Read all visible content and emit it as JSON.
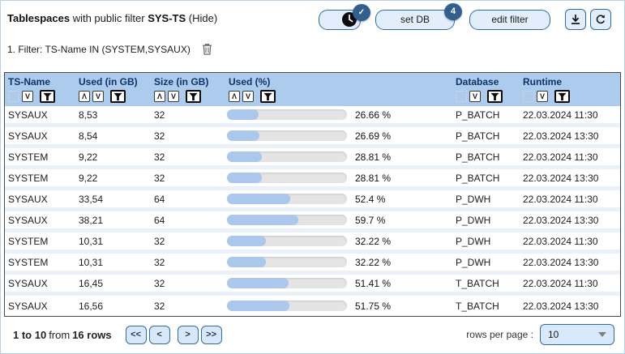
{
  "header": {
    "title_bold": "Tablespaces",
    "title_middle": " with public filter ",
    "title_filter_name": "SYS-TS",
    "hide_label": " (Hide)",
    "toggle_badge_check": "✓",
    "set_db_label": "set DB",
    "set_db_badge": "4",
    "edit_filter_label": "edit filter"
  },
  "icons": {
    "clock": "clock-icon",
    "check": "check-icon",
    "download": "download-icon",
    "refresh": "refresh-icon",
    "trash": "trash-icon",
    "funnel": "filter-funnel-icon",
    "sort_up_glyph": "Λ",
    "sort_down_glyph": "V",
    "dropdown_arrow": "triangle-down-icon"
  },
  "filter_line": {
    "text": "1. Filter: TS-Name IN (SYSTEM,SYSAUX)"
  },
  "table": {
    "columns": [
      {
        "label": "TS-Name",
        "up_enabled": false
      },
      {
        "label": "Used (in GB)",
        "up_enabled": true
      },
      {
        "label": "Size (in GB)",
        "up_enabled": true
      },
      {
        "label": "Used (%)",
        "up_enabled": true
      },
      {
        "label": "Database",
        "up_enabled": false
      },
      {
        "label": "Runtime",
        "up_enabled": false
      }
    ],
    "rows": [
      {
        "ts_name": "SYSAUX",
        "used_gb": "8,53",
        "size_gb": "32",
        "used_pct": 26.66,
        "used_pct_label": "26.66 %",
        "database": "P_BATCH",
        "runtime": "22.03.2024 11:30"
      },
      {
        "ts_name": "SYSAUX",
        "used_gb": "8,54",
        "size_gb": "32",
        "used_pct": 26.69,
        "used_pct_label": "26.69 %",
        "database": "P_BATCH",
        "runtime": "22.03.2024 13:30"
      },
      {
        "ts_name": "SYSTEM",
        "used_gb": "9,22",
        "size_gb": "32",
        "used_pct": 28.81,
        "used_pct_label": "28.81 %",
        "database": "P_BATCH",
        "runtime": "22.03.2024 11:30"
      },
      {
        "ts_name": "SYSTEM",
        "used_gb": "9,22",
        "size_gb": "32",
        "used_pct": 28.81,
        "used_pct_label": "28.81 %",
        "database": "P_BATCH",
        "runtime": "22.03.2024 13:30"
      },
      {
        "ts_name": "SYSAUX",
        "used_gb": "33,54",
        "size_gb": "64",
        "used_pct": 52.4,
        "used_pct_label": "52.4 %",
        "database": "P_DWH",
        "runtime": "22.03.2024 11:30"
      },
      {
        "ts_name": "SYSAUX",
        "used_gb": "38,21",
        "size_gb": "64",
        "used_pct": 59.7,
        "used_pct_label": "59.7 %",
        "database": "P_DWH",
        "runtime": "22.03.2024 13:30"
      },
      {
        "ts_name": "SYSTEM",
        "used_gb": "10,31",
        "size_gb": "32",
        "used_pct": 32.22,
        "used_pct_label": "32.22 %",
        "database": "P_DWH",
        "runtime": "22.03.2024 11:30"
      },
      {
        "ts_name": "SYSTEM",
        "used_gb": "10,31",
        "size_gb": "32",
        "used_pct": 32.22,
        "used_pct_label": "32.22 %",
        "database": "P_DWH",
        "runtime": "22.03.2024 13:30"
      },
      {
        "ts_name": "SYSAUX",
        "used_gb": "16,45",
        "size_gb": "32",
        "used_pct": 51.41,
        "used_pct_label": "51.41 %",
        "database": "T_BATCH",
        "runtime": "22.03.2024 11:30"
      },
      {
        "ts_name": "SYSAUX",
        "used_gb": "16,56",
        "size_gb": "32",
        "used_pct": 51.75,
        "used_pct_label": "51.75 %",
        "database": "T_BATCH",
        "runtime": "22.03.2024 13:30"
      }
    ]
  },
  "footer": {
    "range": "1 to 10",
    "from_word": "from",
    "total": "16 rows",
    "pager": [
      "<<",
      "<",
      ">",
      ">>"
    ],
    "rows_per_page_label": "rows per page :",
    "rows_per_page_value": "10"
  },
  "colors": {
    "header_bg": "#adcbec",
    "header_text": "#0d3468",
    "button_bg": "#e2eefb",
    "button_border": "#2e6da4",
    "badge_bg": "#335f8e",
    "bar_track": "#e4e4e4",
    "bar_fill": "#abc7eb",
    "row_separator": "#ebf1f8",
    "table_border": "#4a4a4a"
  }
}
